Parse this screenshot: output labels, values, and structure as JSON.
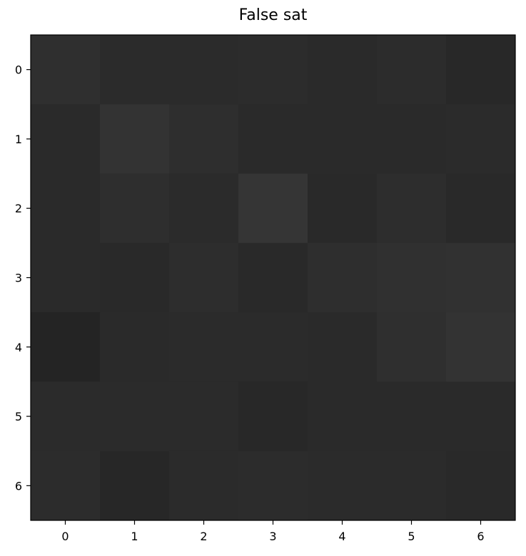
{
  "chart_data": {
    "type": "heatmap",
    "title": "False sat",
    "xlabel": "",
    "ylabel": "",
    "x_ticks": [
      "0",
      "1",
      "2",
      "3",
      "4",
      "5",
      "6"
    ],
    "y_ticks": [
      "0",
      "1",
      "2",
      "3",
      "4",
      "5",
      "6"
    ],
    "colormap": "gray",
    "values": [
      [
        "#2f2f2f",
        "#2b2b2b",
        "#2b2b2b",
        "#2c2c2c",
        "#2a2a2a",
        "#2c2c2c",
        "#282828"
      ],
      [
        "#2a2a2a",
        "#333333",
        "#2e2e2e",
        "#2a2a2a",
        "#2a2a2a",
        "#2a2a2a",
        "#2b2b2b"
      ],
      [
        "#2a2a2a",
        "#2e2e2e",
        "#2b2b2b",
        "#353535",
        "#292929",
        "#2d2d2d",
        "#292929"
      ],
      [
        "#2a2a2a",
        "#292929",
        "#2d2d2d",
        "#292929",
        "#2e2e2e",
        "#303030",
        "#313131"
      ],
      [
        "#242424",
        "#2a2a2a",
        "#2b2b2b",
        "#2b2b2b",
        "#2a2a2a",
        "#2f2f2f",
        "#333333"
      ],
      [
        "#2b2b2b",
        "#2b2b2b",
        "#2b2b2b",
        "#282828",
        "#2a2a2a",
        "#2a2a2a",
        "#2a2a2a"
      ],
      [
        "#2c2c2c",
        "#272727",
        "#2b2b2b",
        "#2c2c2c",
        "#2b2b2b",
        "#2b2b2b",
        "#292929"
      ]
    ],
    "grid": false,
    "colorbar": false
  }
}
